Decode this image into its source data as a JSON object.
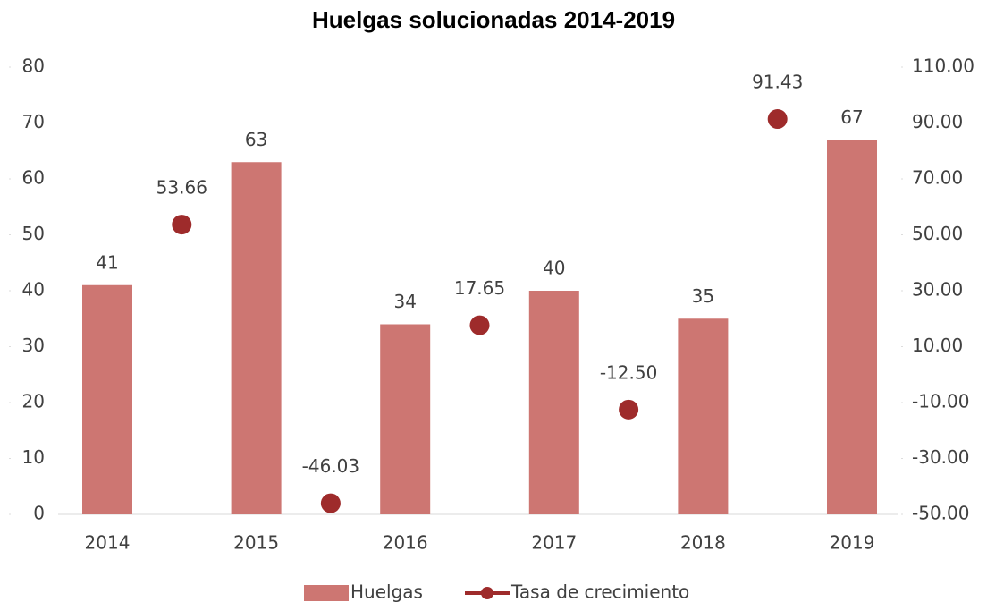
{
  "chart_data": {
    "type": "bar",
    "title": "Huelgas solucionadas 2014-2019",
    "categories": [
      "2014",
      null,
      "2015",
      null,
      "2016",
      null,
      "2017",
      null,
      "2018",
      null,
      "2019"
    ],
    "series": [
      {
        "name": "Huelgas",
        "color": "#cd7672",
        "type": "bar",
        "values": [
          41,
          null,
          63,
          null,
          34,
          null,
          40,
          null,
          35,
          null,
          67
        ]
      },
      {
        "name": "Tasa de crecimiento",
        "color": "#9e2b2b",
        "type": "scatter",
        "axis": "y2",
        "values": [
          null,
          53.66,
          null,
          -46.03,
          null,
          17.65,
          null,
          -12.5,
          null,
          91.43,
          null
        ],
        "value_labels": [
          null,
          "53.66",
          null,
          "-46.03",
          null,
          "17.65",
          null,
          "-12.50",
          null,
          "91.43",
          null
        ]
      }
    ],
    "ylim": [
      0,
      80
    ],
    "yticks": [
      0,
      10,
      20,
      30,
      40,
      50,
      60,
      70,
      80
    ],
    "y2lim": [
      -50,
      110
    ],
    "y2ticks": [
      {
        "value": -50,
        "label": "-50.00"
      },
      {
        "value": -30,
        "label": "-30.00"
      },
      {
        "value": -10,
        "label": "-10.00"
      },
      {
        "value": 10,
        "label": "10.00"
      },
      {
        "value": 30,
        "label": "30.00"
      },
      {
        "value": 50,
        "label": "50.00"
      },
      {
        "value": 70,
        "label": "70.00"
      },
      {
        "value": 90,
        "label": "90.00"
      },
      {
        "value": 110,
        "label": "110.00"
      }
    ],
    "legend": "bottom"
  }
}
